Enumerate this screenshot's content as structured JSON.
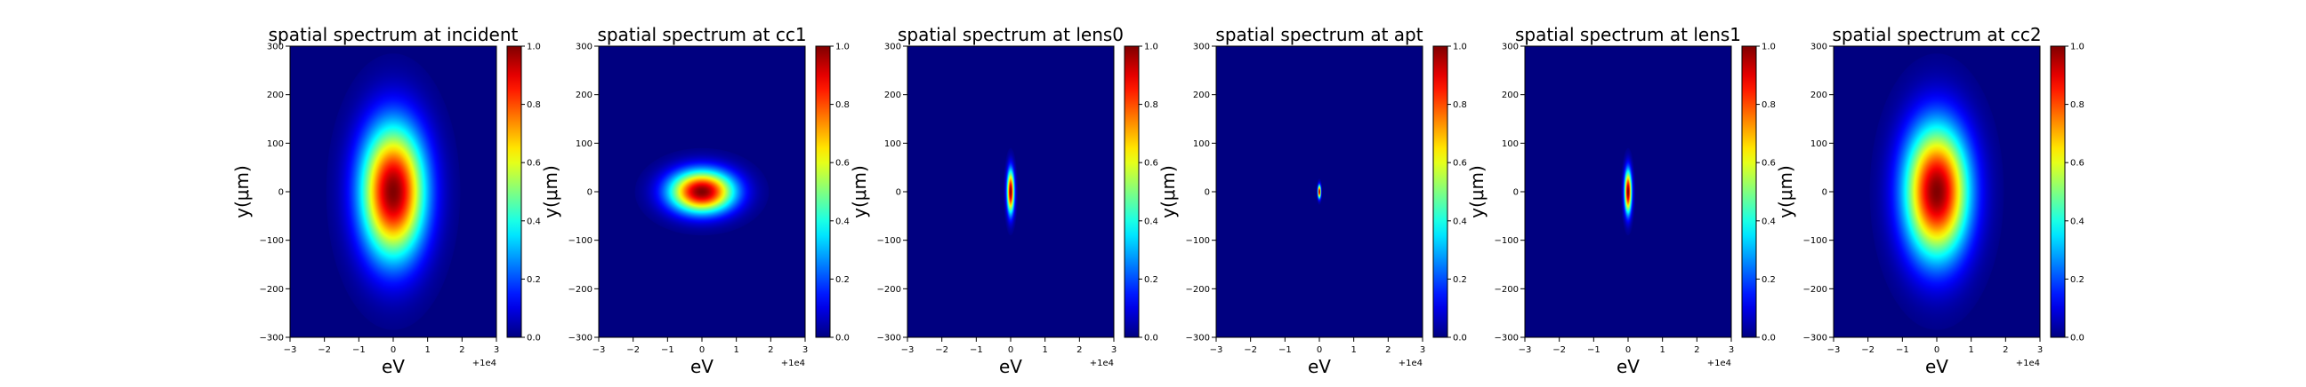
{
  "chart_data": [
    {
      "type": "heatmap",
      "title": "spatial spectrum at incident",
      "xlabel": "eV",
      "ylabel": "y(μm)",
      "x_offset_label": "+1e4",
      "xlim": [
        -3,
        3
      ],
      "ylim": [
        -300,
        300
      ],
      "x_ticks": [
        "−3",
        "−2",
        "−1",
        "0",
        "1",
        "2",
        "3"
      ],
      "y_ticks": [
        "−300",
        "−200",
        "−100",
        "0",
        "100",
        "200",
        "300"
      ],
      "colorbar": {
        "range": [
          0,
          1
        ],
        "ticks": [
          "0.0",
          "0.2",
          "0.4",
          "0.6",
          "0.8",
          "1.0"
        ],
        "colormap": "jet"
      },
      "spot": {
        "center_x": 0.0,
        "center_y": 0.0,
        "sigma_x": 0.65,
        "sigma_y": 95
      }
    },
    {
      "type": "heatmap",
      "title": "spatial spectrum at cc1",
      "xlabel": "eV",
      "ylabel": "y(μm)",
      "x_offset_label": "+1e4",
      "xlim": [
        -3,
        3
      ],
      "ylim": [
        -300,
        300
      ],
      "x_ticks": [
        "−3",
        "−2",
        "−1",
        "0",
        "1",
        "2",
        "3"
      ],
      "y_ticks": [
        "−300",
        "−200",
        "−100",
        "0",
        "100",
        "200",
        "300"
      ],
      "colorbar": {
        "range": [
          0,
          1
        ],
        "ticks": [
          "0.0",
          "0.2",
          "0.4",
          "0.6",
          "0.8",
          "1.0"
        ],
        "colormap": "jet"
      },
      "spot": {
        "center_x": 0.0,
        "center_y": 0.0,
        "sigma_x": 0.65,
        "sigma_y": 30
      }
    },
    {
      "type": "heatmap",
      "title": "spatial spectrum at lens0",
      "xlabel": "eV",
      "ylabel": "y(μm)",
      "x_offset_label": "+1e4",
      "xlim": [
        -3,
        3
      ],
      "ylim": [
        -300,
        300
      ],
      "x_ticks": [
        "−3",
        "−2",
        "−1",
        "0",
        "1",
        "2",
        "3"
      ],
      "y_ticks": [
        "−300",
        "−200",
        "−100",
        "0",
        "100",
        "200",
        "300"
      ],
      "colorbar": {
        "range": [
          0,
          1
        ],
        "ticks": [
          "0.0",
          "0.2",
          "0.4",
          "0.6",
          "0.8",
          "1.0"
        ],
        "colormap": "jet"
      },
      "spot": {
        "center_x": 0.0,
        "center_y": 0.0,
        "sigma_x": 0.07,
        "sigma_y": 30
      }
    },
    {
      "type": "heatmap",
      "title": "spatial spectrum at apt",
      "xlabel": "eV",
      "ylabel": "y(μm)",
      "x_offset_label": "+1e4",
      "xlim": [
        -3,
        3
      ],
      "ylim": [
        -300,
        300
      ],
      "x_ticks": [
        "−3",
        "−2",
        "−1",
        "0",
        "1",
        "2",
        "3"
      ],
      "y_ticks": [
        "−300",
        "−200",
        "−100",
        "0",
        "100",
        "200",
        "300"
      ],
      "colorbar": {
        "range": [
          0,
          1
        ],
        "ticks": [
          "0.0",
          "0.2",
          "0.4",
          "0.6",
          "0.8",
          "1.0"
        ],
        "colormap": "jet"
      },
      "spot": {
        "center_x": 0.0,
        "center_y": 0.0,
        "sigma_x": 0.03,
        "sigma_y": 9
      }
    },
    {
      "type": "heatmap",
      "title": "spatial spectrum at lens1",
      "xlabel": "eV",
      "ylabel": "y(μm)",
      "x_offset_label": "+1e4",
      "xlim": [
        -3,
        3
      ],
      "ylim": [
        -300,
        300
      ],
      "x_ticks": [
        "−3",
        "−2",
        "−1",
        "0",
        "1",
        "2",
        "3"
      ],
      "y_ticks": [
        "−300",
        "−200",
        "−100",
        "0",
        "100",
        "200",
        "300"
      ],
      "colorbar": {
        "range": [
          0,
          1
        ],
        "ticks": [
          "0.0",
          "0.2",
          "0.4",
          "0.6",
          "0.8",
          "1.0"
        ],
        "colormap": "jet"
      },
      "spot": {
        "center_x": 0.0,
        "center_y": 0.0,
        "sigma_x": 0.07,
        "sigma_y": 30
      }
    },
    {
      "type": "heatmap",
      "title": "spatial spectrum at cc2",
      "xlabel": "eV",
      "ylabel": "y(μm)",
      "x_offset_label": "+1e4",
      "xlim": [
        -3,
        3
      ],
      "ylim": [
        -300,
        300
      ],
      "x_ticks": [
        "−3",
        "−2",
        "−1",
        "0",
        "1",
        "2",
        "3"
      ],
      "y_ticks": [
        "−300",
        "−200",
        "−100",
        "0",
        "100",
        "200",
        "300"
      ],
      "colorbar": {
        "range": [
          0,
          1
        ],
        "ticks": [
          "0.0",
          "0.2",
          "0.4",
          "0.6",
          "0.8",
          "1.0"
        ],
        "colormap": "jet"
      },
      "spot": {
        "center_x": 0.0,
        "center_y": 0.0,
        "sigma_x": 0.65,
        "sigma_y": 95
      }
    }
  ]
}
